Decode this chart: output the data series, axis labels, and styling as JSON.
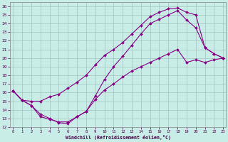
{
  "bg_color": "#c8ece6",
  "line_color": "#880088",
  "grid_color": "#99bbb8",
  "xlim_min": -0.3,
  "xlim_max": 23.3,
  "ylim_min": 12,
  "ylim_max": 26.5,
  "xticks": [
    0,
    1,
    2,
    3,
    4,
    5,
    6,
    7,
    8,
    9,
    10,
    11,
    12,
    13,
    14,
    15,
    16,
    17,
    18,
    19,
    20,
    21,
    22,
    23
  ],
  "yticks": [
    12,
    13,
    14,
    15,
    16,
    17,
    18,
    19,
    20,
    21,
    22,
    23,
    24,
    25,
    26
  ],
  "xlabel": "Windchill (Refroidissement éolien,°C)",
  "curve1_x": [
    0,
    1,
    2,
    3,
    4,
    5,
    6,
    7,
    8,
    9,
    10,
    11,
    12,
    13,
    14,
    15,
    16,
    17,
    18,
    19,
    20,
    21,
    22,
    23
  ],
  "curve1_y": [
    16.2,
    15.1,
    15.0,
    15.0,
    15.5,
    15.8,
    16.5,
    17.2,
    18.0,
    19.2,
    20.3,
    21.0,
    21.8,
    22.8,
    23.8,
    24.8,
    25.3,
    25.7,
    25.8,
    25.3,
    25.0,
    21.2,
    20.5,
    20.0
  ],
  "curve2_x": [
    0,
    1,
    2,
    3,
    4,
    5,
    6,
    7,
    8,
    9,
    10,
    11,
    12,
    13,
    14,
    15,
    16,
    17,
    18,
    19,
    20,
    21,
    22,
    23
  ],
  "curve2_y": [
    16.2,
    15.1,
    14.5,
    13.2,
    12.9,
    12.6,
    12.6,
    13.2,
    13.8,
    15.6,
    17.5,
    19.0,
    20.2,
    21.5,
    22.8,
    24.0,
    24.5,
    25.0,
    25.5,
    24.4,
    23.5,
    21.2,
    20.5,
    20.0
  ],
  "curve3_x": [
    0,
    1,
    2,
    3,
    4,
    5,
    6,
    7,
    8,
    9,
    10,
    11,
    12,
    13,
    14,
    15,
    16,
    17,
    18,
    19,
    20,
    21,
    22,
    23
  ],
  "curve3_y": [
    16.2,
    15.1,
    14.5,
    13.5,
    13.0,
    12.5,
    12.4,
    13.2,
    13.8,
    15.2,
    16.3,
    17.0,
    17.8,
    18.5,
    19.0,
    19.5,
    20.0,
    20.5,
    21.0,
    19.5,
    19.8,
    19.5,
    19.8,
    20.0
  ]
}
